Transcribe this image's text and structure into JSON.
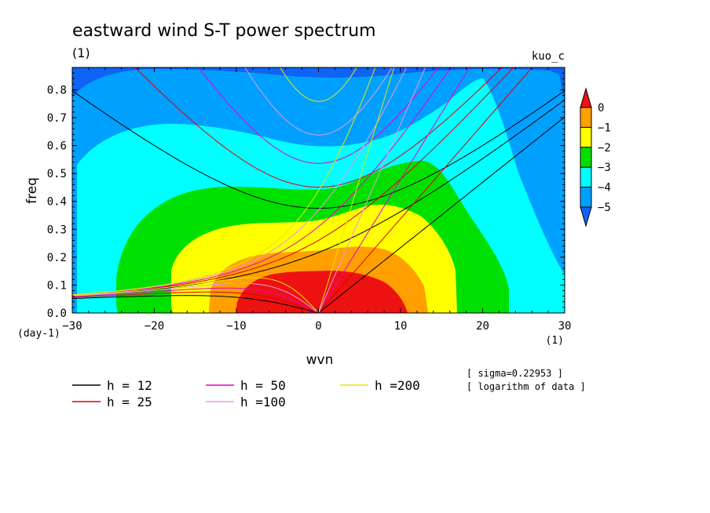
{
  "chart_data": {
    "type": "heatmap",
    "title": "eastward wind S-T power spectrum",
    "title_units": "(1)",
    "subtitle_right": "kuo_c",
    "xlabel": "wvn",
    "x_units": "(1)",
    "ylabel": "freq",
    "y_units": "(day-1)",
    "xlim": [
      -30,
      30
    ],
    "ylim": [
      0,
      0.88
    ],
    "xticks": [
      -30,
      -20,
      -10,
      0,
      10,
      20,
      30
    ],
    "yticks": [
      0.0,
      0.1,
      0.2,
      0.3,
      0.4,
      0.5,
      0.6,
      0.7,
      0.8
    ],
    "contour_levels": [
      -5,
      -4,
      -3,
      -2,
      -1,
      0
    ],
    "colorbar_labels": [
      "0",
      "−1",
      "−2",
      "−3",
      "−4",
      "−5"
    ],
    "colors": {
      "below_-5": "#0f63f5",
      "-5_-4": "#00a0ff",
      "-4_-3": "#00ffff",
      "-3_-2": "#00e000",
      "-2_-1": "#ffff00",
      "-1_0": "#ffa000",
      "above_0": "#ee1111"
    },
    "dispersion_curves": [
      {
        "name": "h = 12",
        "h": 12,
        "color": "#000000"
      },
      {
        "name": "h = 25",
        "h": 25,
        "color": "#dd0000"
      },
      {
        "name": "h = 50",
        "h": 50,
        "color": "#e600c8"
      },
      {
        "name": "h =100",
        "h": 100,
        "color": "#e898ea"
      },
      {
        "name": "h =200",
        "h": 200,
        "color": "#e6e600"
      }
    ],
    "annotations": [
      "[ sigma=0.22953 ]",
      "[ logarithm of data ]"
    ]
  }
}
